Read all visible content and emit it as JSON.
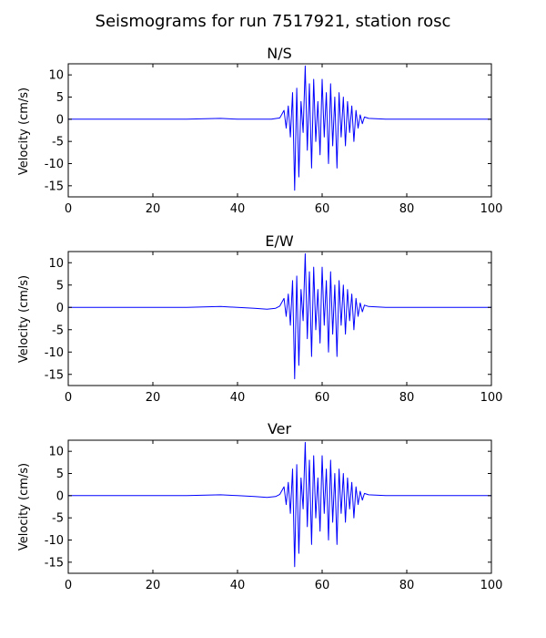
{
  "suptitle": "Seismograms for run 7517921, station rosc",
  "colors": {
    "trace": "#0000ff",
    "axes": "#000000",
    "background": "#ffffff"
  },
  "chart_data": [
    {
      "type": "line",
      "title": "N/S",
      "xlabel": "",
      "ylabel": "Velocity (cm/s)",
      "xlim": [
        0,
        100
      ],
      "ylim": [
        -17.5,
        12.5
      ],
      "xticks": [
        "0",
        "20",
        "40",
        "60",
        "80",
        "100"
      ],
      "yticks": [
        "10",
        "5",
        "0",
        "-5",
        "-10",
        "-15"
      ],
      "grid": false,
      "series": [
        {
          "x": [
            0,
            10,
            20,
            28,
            36,
            40,
            45,
            48,
            50,
            51,
            51.5,
            52,
            52.5,
            53,
            53.5,
            54,
            54.5,
            55,
            55.5,
            56,
            56.5,
            57,
            57.5,
            58,
            58.5,
            59,
            59.5,
            60,
            60.5,
            61,
            61.5,
            62,
            62.5,
            63,
            63.5,
            64,
            64.5,
            65,
            65.5,
            66,
            66.5,
            67,
            67.5,
            68,
            68.5,
            69,
            69.5,
            70,
            71,
            75,
            80,
            90,
            100
          ],
          "y": [
            0,
            0,
            0,
            0,
            0.2,
            0,
            0,
            0,
            0.3,
            2,
            -2,
            3,
            -4,
            6,
            -16,
            7,
            -13,
            4,
            -3,
            12,
            -7,
            8,
            -11,
            9,
            -5,
            4,
            -8,
            9,
            -4,
            6,
            -10,
            8,
            -6,
            5,
            -11,
            6,
            -4,
            5,
            -6,
            4,
            -3,
            3,
            -5,
            2,
            -2,
            1,
            -1,
            0.5,
            0.2,
            0,
            0,
            0,
            0
          ]
        }
      ]
    },
    {
      "type": "line",
      "title": "E/W",
      "xlabel": "",
      "ylabel": "Velocity (cm/s)",
      "xlim": [
        0,
        100
      ],
      "ylim": [
        -17.5,
        12.5
      ],
      "xticks": [
        "0",
        "20",
        "40",
        "60",
        "80",
        "100"
      ],
      "yticks": [
        "10",
        "5",
        "0",
        "-5",
        "-10",
        "-15"
      ],
      "grid": false,
      "series": [
        {
          "x": [
            0,
            10,
            20,
            28,
            36,
            40,
            44,
            47,
            49,
            50,
            51,
            51.5,
            52,
            52.5,
            53,
            53.5,
            54,
            54.5,
            55,
            55.5,
            56,
            56.5,
            57,
            57.5,
            58,
            58.5,
            59,
            59.5,
            60,
            60.5,
            61,
            61.5,
            62,
            62.5,
            63,
            63.5,
            64,
            64.5,
            65,
            65.5,
            66,
            66.5,
            67,
            67.5,
            68,
            68.5,
            69,
            69.5,
            70,
            71,
            75,
            80,
            90,
            100
          ],
          "y": [
            0,
            0,
            0,
            0,
            0.2,
            0,
            -0.2,
            -0.4,
            -0.2,
            0.3,
            2,
            -2,
            3,
            -4,
            6,
            -16,
            7,
            -13,
            4,
            -3,
            12,
            -7,
            8,
            -11,
            9,
            -5,
            4,
            -8,
            9,
            -4,
            6,
            -10,
            8,
            -6,
            5,
            -11,
            6,
            -4,
            5,
            -6,
            4,
            -3,
            3,
            -5,
            2,
            -2,
            1,
            -1,
            0.5,
            0.2,
            0,
            0,
            0,
            0
          ]
        }
      ]
    },
    {
      "type": "line",
      "title": "Ver",
      "xlabel": "",
      "ylabel": "Velocity (cm/s)",
      "xlim": [
        0,
        100
      ],
      "ylim": [
        -17.5,
        12.5
      ],
      "xticks": [
        "0",
        "20",
        "40",
        "60",
        "80",
        "100"
      ],
      "yticks": [
        "10",
        "5",
        "0",
        "-5",
        "-10",
        "-15"
      ],
      "grid": false,
      "series": [
        {
          "x": [
            0,
            10,
            20,
            28,
            36,
            40,
            44,
            47,
            49,
            50,
            51,
            51.5,
            52,
            52.5,
            53,
            53.5,
            54,
            54.5,
            55,
            55.5,
            56,
            56.5,
            57,
            57.5,
            58,
            58.5,
            59,
            59.5,
            60,
            60.5,
            61,
            61.5,
            62,
            62.5,
            63,
            63.5,
            64,
            64.5,
            65,
            65.5,
            66,
            66.5,
            67,
            67.5,
            68,
            68.5,
            69,
            69.5,
            70,
            71,
            75,
            80,
            90,
            100
          ],
          "y": [
            0,
            0,
            0,
            0,
            0.2,
            0,
            -0.2,
            -0.4,
            -0.2,
            0.3,
            2,
            -2,
            3,
            -4,
            6,
            -16,
            7,
            -13,
            4,
            -3,
            12,
            -7,
            8,
            -11,
            9,
            -5,
            4,
            -8,
            9,
            -4,
            6,
            -10,
            8,
            -6,
            5,
            -11,
            6,
            -4,
            5,
            -6,
            4,
            -3,
            3,
            -5,
            2,
            -2,
            1,
            -1,
            0.5,
            0.2,
            0,
            0,
            0,
            0
          ]
        }
      ]
    }
  ]
}
